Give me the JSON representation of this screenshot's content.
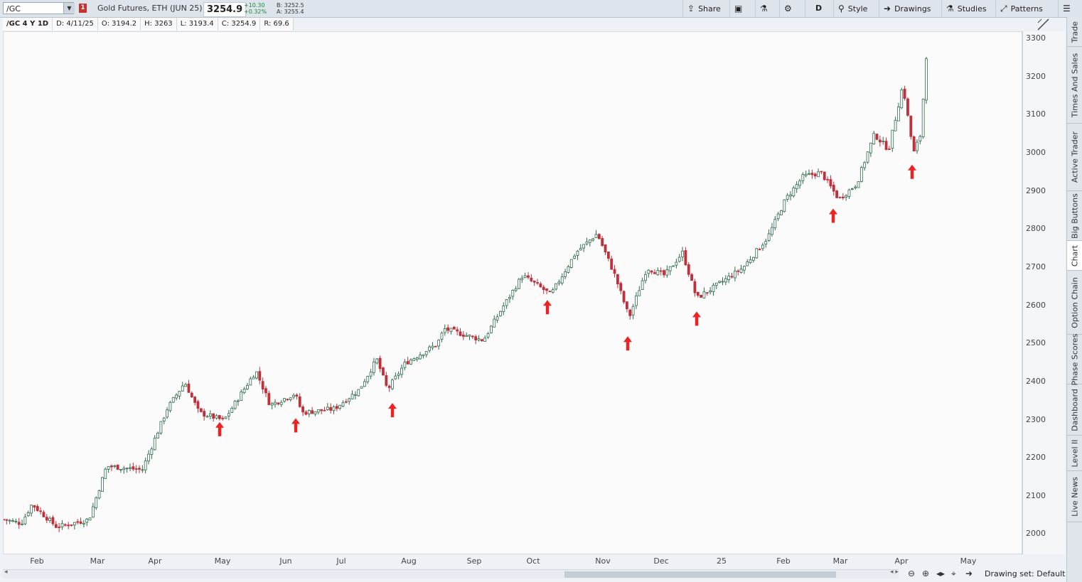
{
  "toolbar": {
    "symbol": "/GC",
    "badge": "1",
    "description": "Gold Futures, ETH (JUN 25)",
    "last": "3254.9",
    "change_abs": "+10.30",
    "change_pct": "+0.32%",
    "bid": "B: 3252.5",
    "ask": "A: 3255.4",
    "share": "Share",
    "aggregation": "D",
    "style": "Style",
    "drawings": "Drawings",
    "studies": "Studies",
    "patterns": "Patterns"
  },
  "info": {
    "title": "/GC 4 Y 1D",
    "date": "D: 4/11/25",
    "open": "O: 3194.2",
    "high": "H: 3263",
    "low": "L: 3193.4",
    "close": "C: 3254.9",
    "range": "R: 69.6"
  },
  "price_labels": [
    "3300",
    "3200",
    "3100",
    "3000",
    "2900",
    "2800",
    "2700",
    "2600",
    "2500",
    "2400",
    "2300",
    "2200",
    "2100",
    "2000"
  ],
  "date_labels": [
    "Feb",
    "Mar",
    "Apr",
    "May",
    "Jun",
    "Jul",
    "Aug",
    "Sep",
    "Oct",
    "Nov",
    "Dec",
    "25",
    "Feb",
    "Mar",
    "Apr",
    "May"
  ],
  "side_tabs": [
    "Trade",
    "Times And Sales",
    "Active Trader",
    "Big Buttons",
    "Chart",
    "Option Chain",
    "Phase Scores",
    "Dashboard",
    "Level II",
    "Live News"
  ],
  "bottom": {
    "drawing_set": "Drawing set: Default"
  },
  "colors": {
    "up_candle": "#2f6b4a",
    "down_candle": "#c0303a",
    "marker": "#ee2222"
  },
  "chart_data": {
    "type": "candlestick",
    "ylim": [
      1950,
      3330
    ],
    "ticks_y": [
      2000,
      2100,
      2200,
      2300,
      2400,
      2500,
      2600,
      2700,
      2800,
      2900,
      3000,
      3100,
      3200,
      3300
    ],
    "date_range": [
      "2024-01-16",
      "2025-04-11"
    ],
    "anchors": [
      [
        0,
        2040
      ],
      [
        25,
        2030
      ],
      [
        40,
        2080
      ],
      [
        75,
        2020
      ],
      [
        120,
        2040
      ],
      [
        145,
        2180
      ],
      [
        195,
        2170
      ],
      [
        230,
        2330
      ],
      [
        255,
        2400
      ],
      [
        275,
        2320
      ],
      [
        310,
        2300
      ],
      [
        355,
        2430
      ],
      [
        375,
        2340
      ],
      [
        410,
        2370
      ],
      [
        420,
        2320
      ],
      [
        465,
        2330
      ],
      [
        500,
        2380
      ],
      [
        525,
        2460
      ],
      [
        540,
        2380
      ],
      [
        565,
        2450
      ],
      [
        610,
        2500
      ],
      [
        620,
        2540
      ],
      [
        675,
        2510
      ],
      [
        700,
        2590
      ],
      [
        730,
        2680
      ],
      [
        770,
        2630
      ],
      [
        805,
        2740
      ],
      [
        835,
        2790
      ],
      [
        860,
        2680
      ],
      [
        880,
        2570
      ],
      [
        905,
        2700
      ],
      [
        930,
        2680
      ],
      [
        955,
        2740
      ],
      [
        975,
        2620
      ],
      [
        1000,
        2650
      ],
      [
        1040,
        2700
      ],
      [
        1075,
        2780
      ],
      [
        1100,
        2880
      ],
      [
        1125,
        2940
      ],
      [
        1150,
        2950
      ],
      [
        1175,
        2880
      ],
      [
        1200,
        2920
      ],
      [
        1215,
        3000
      ],
      [
        1225,
        3050
      ],
      [
        1245,
        3010
      ],
      [
        1265,
        3180
      ],
      [
        1280,
        3000
      ],
      [
        1290,
        3050
      ],
      [
        1298,
        3255
      ]
    ],
    "candle_count": 300,
    "markers": [
      {
        "label": "up-arrow",
        "date": "2024-05-02",
        "price": 2275
      },
      {
        "label": "up-arrow",
        "date": "2024-06-07",
        "price": 2285
      },
      {
        "label": "up-arrow",
        "date": "2024-07-26",
        "price": 2325
      },
      {
        "label": "up-arrow",
        "date": "2024-10-07",
        "price": 2595
      },
      {
        "label": "up-arrow",
        "date": "2024-11-14",
        "price": 2500
      },
      {
        "label": "up-arrow",
        "date": "2024-12-19",
        "price": 2565
      },
      {
        "label": "up-arrow",
        "date": "2025-02-28",
        "price": 2835
      },
      {
        "label": "up-arrow",
        "date": "2025-04-07",
        "price": 2950
      }
    ],
    "grid": false
  }
}
